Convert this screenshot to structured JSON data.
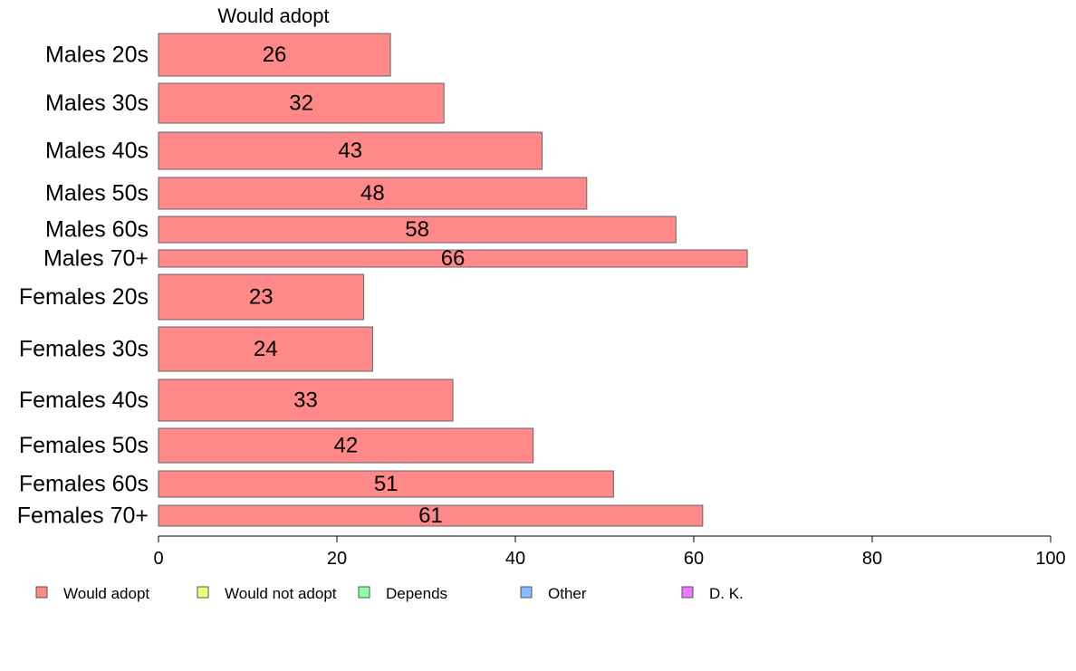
{
  "chart_data": {
    "type": "bar",
    "orientation": "horizontal",
    "column_header": "Would adopt",
    "categories": [
      "Males 20s",
      "Males 30s",
      "Males 40s",
      "Males 50s",
      "Males 60s",
      "Males 70+",
      "Females 20s",
      "Females 30s",
      "Females 40s",
      "Females 50s",
      "Females 60s",
      "Females 70+"
    ],
    "series": [
      {
        "name": "Would adopt",
        "color": "#ff8888",
        "values": [
          26,
          32,
          43,
          48,
          58,
          66,
          23,
          24,
          33,
          42,
          51,
          61
        ]
      }
    ],
    "xlim": [
      0,
      100
    ],
    "xticks": [
      0,
      20,
      40,
      60,
      80,
      100
    ],
    "grid": false,
    "legend": {
      "placement": "bottom",
      "entries": [
        {
          "label": "Would adopt",
          "color": "#ff8888"
        },
        {
          "label": "Would not adopt",
          "color": "#eeff77"
        },
        {
          "label": "Depends",
          "color": "#88ffaa"
        },
        {
          "label": "Other",
          "color": "#88bbff"
        },
        {
          "label": "D. K.",
          "color": "#ee77ff"
        }
      ]
    }
  }
}
